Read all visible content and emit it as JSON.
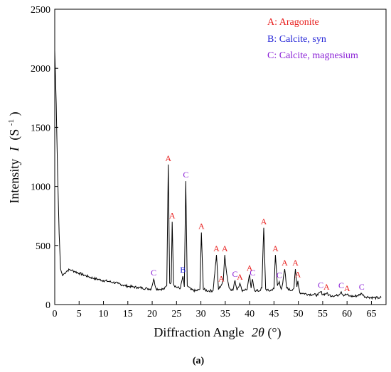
{
  "chart_data": {
    "type": "line",
    "xlabel_text": "Diffraction Angle",
    "xlabel_symbol": "2θ",
    "xlabel_unit": "(°)",
    "ylabel_text": "Intensity",
    "ylabel_symbol": "I",
    "ylabel_unit_pre": "(S",
    "ylabel_unit_sup": "-1",
    "ylabel_unit_post": ")",
    "panel_label": "(a)",
    "xlim": [
      0,
      68
    ],
    "ylim": [
      0,
      2500
    ],
    "x_ticks": [
      0,
      5,
      10,
      15,
      20,
      25,
      30,
      35,
      40,
      45,
      50,
      55,
      60,
      65
    ],
    "y_ticks": [
      0,
      500,
      1000,
      1500,
      2000,
      2500
    ],
    "grid": false,
    "legend": [
      {
        "text": "A: Aragonite",
        "color": "#e8201f"
      },
      {
        "text": "B: Calcite, syn",
        "color": "#1f1fd6"
      },
      {
        "text": "C: Calcite, magnesium",
        "color": "#8a1fd6"
      }
    ],
    "series": [
      {
        "points": [
          [
            0,
            2150
          ],
          [
            0.3,
            1700
          ],
          [
            0.6,
            1100
          ],
          [
            0.9,
            600
          ],
          [
            1.2,
            300
          ],
          [
            1.6,
            245
          ],
          [
            2,
            265
          ],
          [
            2.5,
            285
          ],
          [
            3,
            295
          ],
          [
            3.5,
            290
          ],
          [
            4,
            282
          ],
          [
            5,
            265
          ],
          [
            6,
            250
          ],
          [
            7,
            235
          ],
          [
            8,
            222
          ],
          [
            9,
            212
          ],
          [
            10,
            203
          ],
          [
            11,
            196
          ],
          [
            12,
            188
          ],
          [
            13,
            178
          ],
          [
            14,
            165
          ],
          [
            15,
            155
          ],
          [
            16,
            150
          ],
          [
            17,
            145
          ],
          [
            18,
            140
          ],
          [
            19,
            135
          ],
          [
            19.8,
            132
          ],
          [
            20.3,
            215
          ],
          [
            20.8,
            135
          ],
          [
            21.5,
            130
          ],
          [
            22.5,
            132
          ],
          [
            23.0,
            160
          ],
          [
            23.3,
            1185
          ],
          [
            23.6,
            180
          ],
          [
            23.9,
            190
          ],
          [
            24.1,
            700
          ],
          [
            24.4,
            170
          ],
          [
            25,
            145
          ],
          [
            25.8,
            140
          ],
          [
            26.3,
            240
          ],
          [
            26.6,
            150
          ],
          [
            26.9,
            1045
          ],
          [
            27.2,
            160
          ],
          [
            28,
            125
          ],
          [
            29,
            115
          ],
          [
            29.8,
            130
          ],
          [
            30.1,
            610
          ],
          [
            30.5,
            130
          ],
          [
            31.5,
            115
          ],
          [
            32.5,
            118
          ],
          [
            33.2,
            420
          ],
          [
            33.6,
            130
          ],
          [
            34.2,
            165
          ],
          [
            34.6,
            200
          ],
          [
            34.9,
            420
          ],
          [
            35.3,
            260
          ],
          [
            35.8,
            140
          ],
          [
            36.6,
            120
          ],
          [
            37.0,
            205
          ],
          [
            37.4,
            125
          ],
          [
            38.0,
            180
          ],
          [
            38.4,
            120
          ],
          [
            39.5,
            130
          ],
          [
            40.0,
            255
          ],
          [
            40.3,
            140
          ],
          [
            40.6,
            215
          ],
          [
            41,
            120
          ],
          [
            42,
            115
          ],
          [
            42.5,
            140
          ],
          [
            42.9,
            650
          ],
          [
            43.3,
            130
          ],
          [
            44,
            115
          ],
          [
            45,
            135
          ],
          [
            45.3,
            420
          ],
          [
            45.7,
            160
          ],
          [
            46.1,
            195
          ],
          [
            46.5,
            130
          ],
          [
            46.8,
            180
          ],
          [
            47.2,
            300
          ],
          [
            47.6,
            140
          ],
          [
            48.5,
            120
          ],
          [
            49.1,
            140
          ],
          [
            49.4,
            300
          ],
          [
            49.7,
            150
          ],
          [
            49.9,
            200
          ],
          [
            50.3,
            100
          ],
          [
            51,
            95
          ],
          [
            52,
            88
          ],
          [
            53,
            85
          ],
          [
            54,
            80
          ],
          [
            54.6,
            110
          ],
          [
            55,
            85
          ],
          [
            55.8,
            95
          ],
          [
            56.3,
            80
          ],
          [
            57,
            75
          ],
          [
            58,
            75
          ],
          [
            58.8,
            108
          ],
          [
            59.2,
            80
          ],
          [
            60,
            85
          ],
          [
            60.5,
            72
          ],
          [
            61.5,
            70
          ],
          [
            62.5,
            80
          ],
          [
            63,
            95
          ],
          [
            63.5,
            70
          ],
          [
            64.5,
            62
          ],
          [
            65.5,
            58
          ],
          [
            66.5,
            56
          ],
          [
            67,
            60
          ]
        ]
      }
    ],
    "peak_labels": [
      {
        "letter": "C",
        "x": 20.3,
        "y": 215,
        "color": "#8a1fd6"
      },
      {
        "letter": "A",
        "x": 23.3,
        "y": 1185,
        "color": "#e8201f"
      },
      {
        "letter": "A",
        "x": 24.1,
        "y": 700,
        "color": "#e8201f"
      },
      {
        "letter": "B",
        "x": 26.3,
        "y": 240,
        "color": "#1f1fd6"
      },
      {
        "letter": "C",
        "x": 26.9,
        "y": 1045,
        "color": "#8a1fd6"
      },
      {
        "letter": "A",
        "x": 30.1,
        "y": 610,
        "color": "#e8201f"
      },
      {
        "letter": "A",
        "x": 33.2,
        "y": 420,
        "color": "#e8201f"
      },
      {
        "letter": "A",
        "x": 34.2,
        "y": 165,
        "color": "#e8201f"
      },
      {
        "letter": "A",
        "x": 34.9,
        "y": 420,
        "color": "#e8201f"
      },
      {
        "letter": "C",
        "x": 37.0,
        "y": 205,
        "color": "#8a1fd6"
      },
      {
        "letter": "A",
        "x": 38.0,
        "y": 180,
        "color": "#e8201f"
      },
      {
        "letter": "A",
        "x": 40.0,
        "y": 255,
        "color": "#e8201f"
      },
      {
        "letter": "C",
        "x": 40.6,
        "y": 215,
        "color": "#8a1fd6"
      },
      {
        "letter": "A",
        "x": 42.9,
        "y": 650,
        "color": "#e8201f"
      },
      {
        "letter": "A",
        "x": 45.3,
        "y": 420,
        "color": "#e8201f"
      },
      {
        "letter": "C",
        "x": 46.1,
        "y": 195,
        "color": "#8a1fd6"
      },
      {
        "letter": "A",
        "x": 47.2,
        "y": 300,
        "color": "#e8201f"
      },
      {
        "letter": "A",
        "x": 49.4,
        "y": 300,
        "color": "#e8201f"
      },
      {
        "letter": "A",
        "x": 49.9,
        "y": 200,
        "color": "#e8201f"
      },
      {
        "letter": "C",
        "x": 54.6,
        "y": 110,
        "color": "#8a1fd6"
      },
      {
        "letter": "A",
        "x": 55.8,
        "y": 95,
        "color": "#e8201f"
      },
      {
        "letter": "C",
        "x": 58.8,
        "y": 108,
        "color": "#8a1fd6"
      },
      {
        "letter": "A",
        "x": 60.0,
        "y": 85,
        "color": "#e8201f"
      },
      {
        "letter": "C",
        "x": 63.0,
        "y": 95,
        "color": "#8a1fd6"
      }
    ]
  }
}
